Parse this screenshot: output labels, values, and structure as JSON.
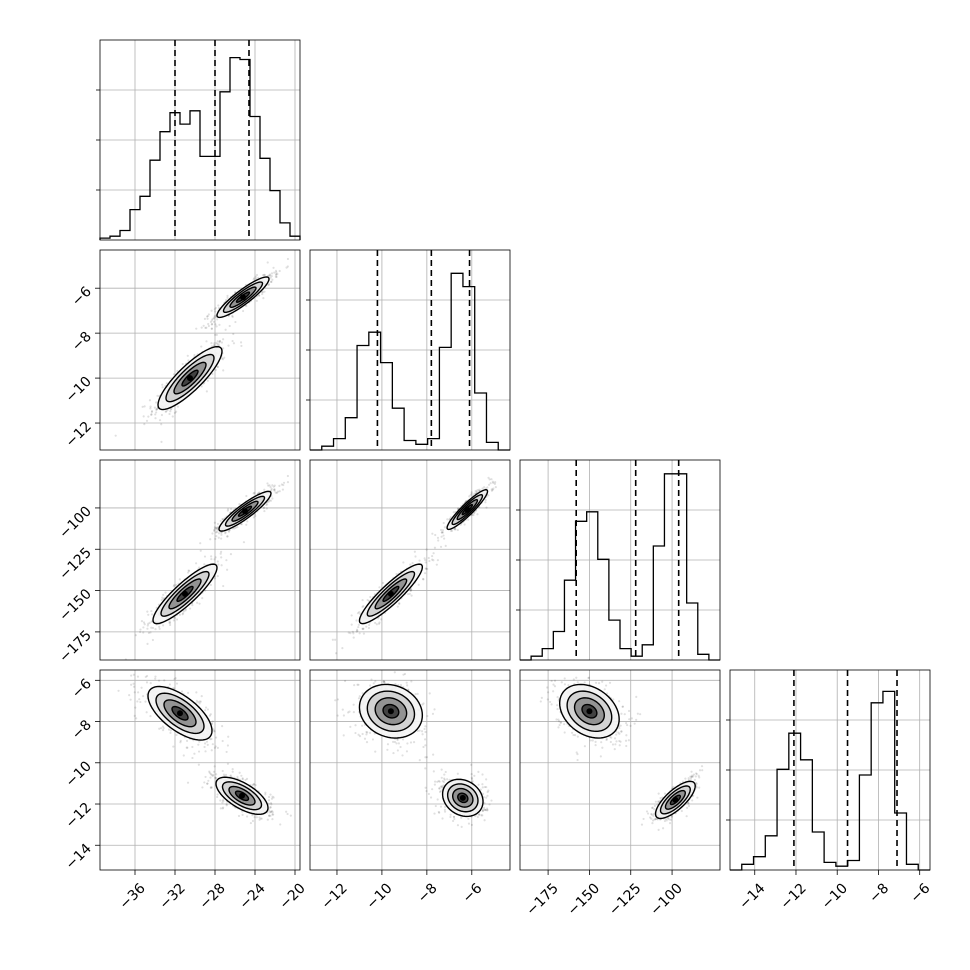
{
  "chart_data": {
    "type": "corner",
    "grid": true,
    "parameters": [
      {
        "range": [
          -39.5,
          -19.5
        ],
        "ticks": [
          -36,
          -32,
          -28,
          -24,
          -20
        ],
        "hist": [
          0.01,
          0.02,
          0.05,
          0.16,
          0.23,
          0.42,
          0.57,
          0.67,
          0.61,
          0.68,
          0.44,
          0.44,
          0.78,
          0.96,
          0.95,
          0.65,
          0.43,
          0.26,
          0.09,
          0.02
        ],
        "quantiles": [
          -32.0,
          -28.0,
          -24.6
        ],
        "modes": [
          {
            "mean": -31.0,
            "sd": 1.6,
            "w": 0.5
          },
          {
            "mean": -24.8,
            "sd": 1.3,
            "w": 0.5
          }
        ]
      },
      {
        "range": [
          -13.2,
          -4.3
        ],
        "ticks": [
          -12,
          -10,
          -8,
          -6
        ],
        "hist": [
          0.0,
          0.02,
          0.06,
          0.17,
          0.55,
          0.62,
          0.46,
          0.22,
          0.05,
          0.03,
          0.06,
          0.54,
          0.93,
          0.86,
          0.3,
          0.04,
          0.0
        ],
        "quantiles": [
          -10.2,
          -7.8,
          -6.1
        ],
        "modes": [
          {
            "mean": -9.8,
            "sd": 0.7,
            "w": 0.5
          },
          {
            "mean": -6.1,
            "sd": 0.45,
            "w": 0.5
          }
        ]
      },
      {
        "range": [
          -192,
          -71
        ],
        "ticks": [
          -175,
          -150,
          -125,
          -100
        ],
        "hist": [
          0.0,
          0.02,
          0.06,
          0.15,
          0.42,
          0.73,
          0.78,
          0.53,
          0.21,
          0.06,
          0.02,
          0.08,
          0.6,
          0.98,
          0.98,
          0.3,
          0.03,
          0.0
        ],
        "quantiles": [
          -158,
          -122,
          -96
        ],
        "modes": [
          {
            "mean": -152,
            "sd": 9,
            "w": 0.5
          },
          {
            "mean": -98,
            "sd": 6,
            "w": 0.5
          }
        ]
      },
      {
        "range": [
          -15.2,
          -5.5
        ],
        "ticks": [
          -14,
          -12,
          -10,
          -8,
          -6
        ],
        "hist": [
          0.0,
          0.03,
          0.07,
          0.18,
          0.53,
          0.72,
          0.58,
          0.2,
          0.04,
          0.02,
          0.05,
          0.5,
          0.88,
          0.94,
          0.3,
          0.03,
          0.0
        ],
        "quantiles": [
          -12.1,
          -9.5,
          -7.1
        ],
        "modes": [
          {
            "mean": -11.7,
            "sd": 0.65,
            "w": 0.5
          },
          {
            "mean": -7.3,
            "sd": 0.45,
            "w": 0.5
          }
        ]
      }
    ],
    "pairs": [
      {
        "x": 0,
        "y": 1,
        "clusters": [
          {
            "cx": -30.5,
            "cy": -10.0,
            "r": 0.85
          },
          {
            "cx": -25.2,
            "cy": -6.4,
            "r": 0.9
          }
        ]
      },
      {
        "x": 0,
        "y": 2,
        "clusters": [
          {
            "cx": -31.0,
            "cy": -152,
            "r": 0.88
          },
          {
            "cx": -25.0,
            "cy": -102,
            "r": 0.9
          }
        ]
      },
      {
        "x": 1,
        "y": 2,
        "clusters": [
          {
            "cx": -9.6,
            "cy": -152,
            "r": 0.9
          },
          {
            "cx": -6.2,
            "cy": -101,
            "r": 0.92
          }
        ]
      },
      {
        "x": 0,
        "y": 3,
        "clusters": [
          {
            "cx": -31.5,
            "cy": -7.6,
            "r": -0.65
          },
          {
            "cx": -25.3,
            "cy": -11.6,
            "r": -0.65
          }
        ]
      },
      {
        "x": 1,
        "y": 3,
        "clusters": [
          {
            "cx": -9.6,
            "cy": -7.5,
            "r": -0.15
          },
          {
            "cx": -6.4,
            "cy": -11.7,
            "r": -0.2
          }
        ]
      },
      {
        "x": 2,
        "y": 3,
        "clusters": [
          {
            "cx": -150,
            "cy": -7.5,
            "r": -0.3
          },
          {
            "cx": -98,
            "cy": -11.8,
            "r": 0.75
          }
        ]
      }
    ]
  }
}
